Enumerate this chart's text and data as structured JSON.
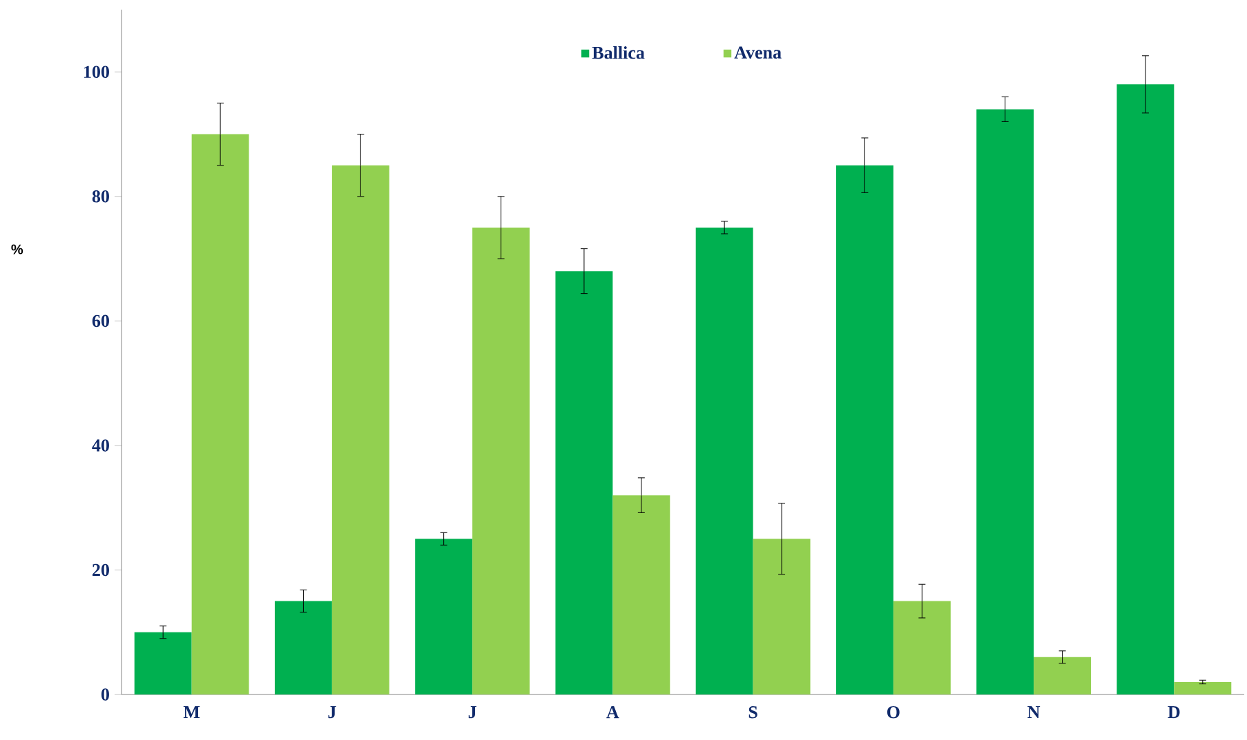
{
  "chart_data": {
    "type": "bar",
    "ylabel": "%",
    "categories": [
      "M",
      "J",
      "J",
      "A",
      "S",
      "O",
      "N",
      "D"
    ],
    "series": [
      {
        "name": "Ballica",
        "color": "#00b050",
        "values": [
          10,
          15,
          25,
          68,
          75,
          85,
          94,
          98
        ],
        "errors": [
          1,
          1.8,
          1,
          3.6,
          1,
          4.4,
          2,
          4.6
        ]
      },
      {
        "name": "Avena",
        "color": "#92d050",
        "values": [
          90,
          85,
          75,
          32,
          25,
          15,
          6,
          2
        ],
        "errors": [
          5,
          5,
          5,
          2.8,
          5.7,
          2.7,
          1,
          0.3
        ]
      }
    ],
    "ylim": [
      0,
      110
    ],
    "yticks": [
      0,
      20,
      40,
      60,
      80,
      100
    ],
    "grid": false,
    "legend": "top"
  }
}
